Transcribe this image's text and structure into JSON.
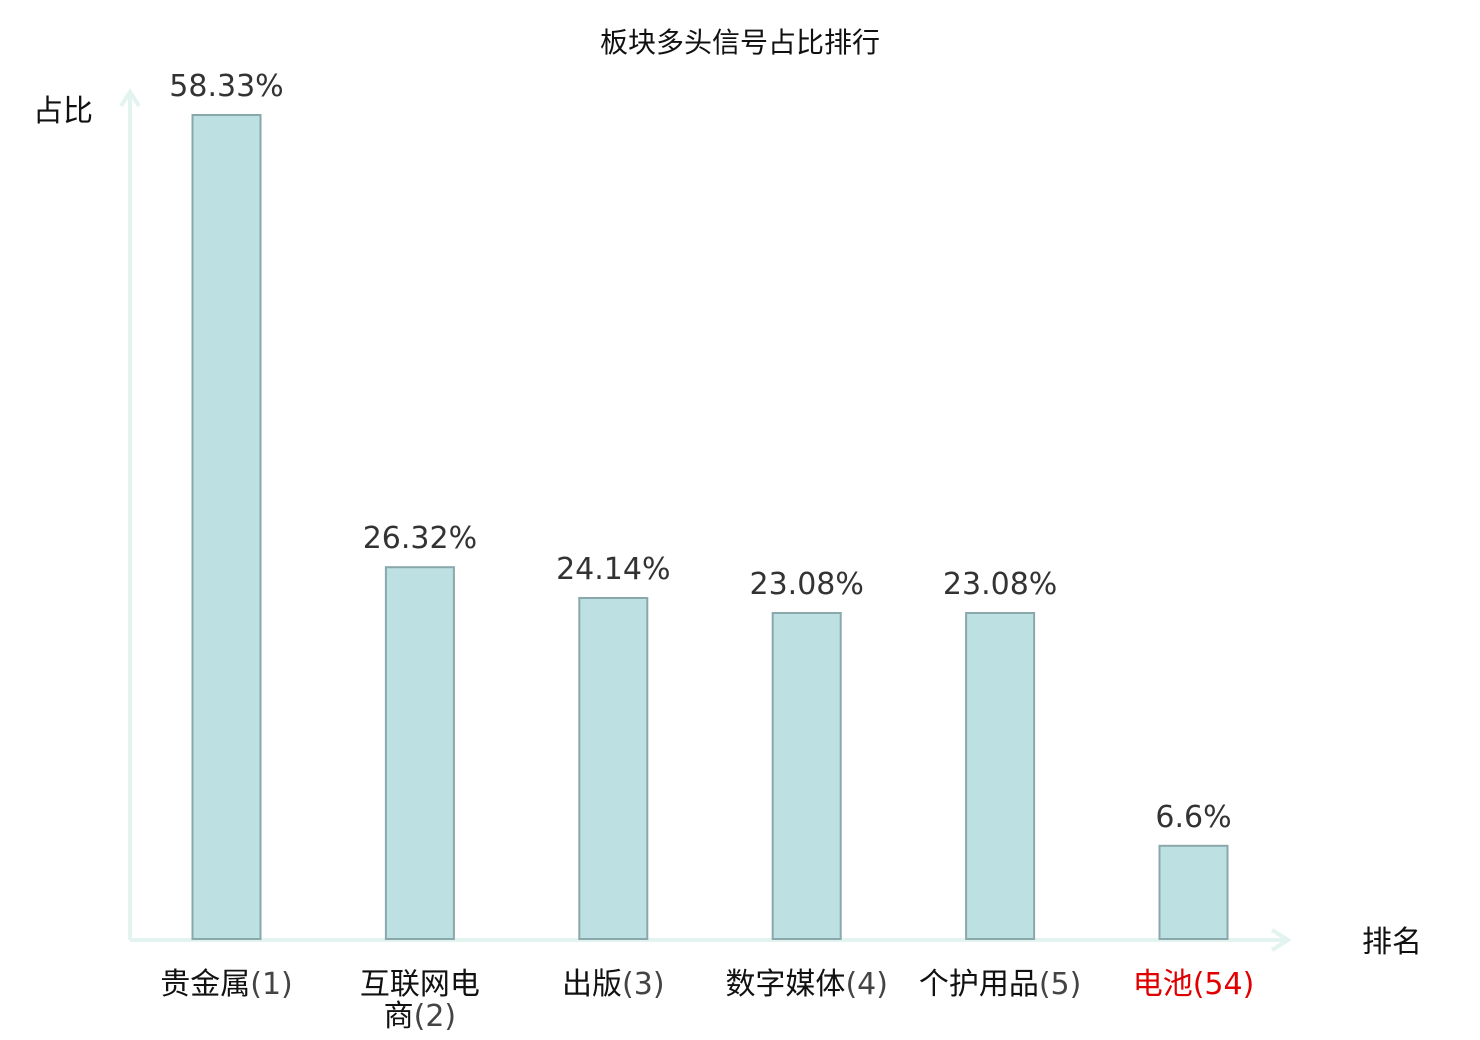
{
  "chart_data": {
    "type": "bar",
    "title": "板块多头信号占比排行",
    "ylabel": "占比",
    "xlabel": "排名",
    "categories": [
      {
        "name": "贵金属",
        "rank": "(1)",
        "lines": [
          "贵金属(1)"
        ]
      },
      {
        "name": "互联网电商",
        "rank": "(2)",
        "lines": [
          "互联网电",
          "商(2)"
        ]
      },
      {
        "name": "出版",
        "rank": "(3)",
        "lines": [
          "出版(3)"
        ]
      },
      {
        "name": "数字媒体",
        "rank": "(4)",
        "lines": [
          "数字媒体(4)"
        ]
      },
      {
        "name": "个护用品",
        "rank": "(5)",
        "lines": [
          "个护用品(5)"
        ]
      },
      {
        "name": "电池",
        "rank": "(54)",
        "lines": [
          "电池(54)"
        ],
        "highlight": true
      }
    ],
    "values": [
      58.33,
      26.32,
      24.14,
      23.08,
      23.08,
      6.6
    ],
    "value_labels": [
      "58.33%",
      "26.32%",
      "24.14%",
      "23.08%",
      "23.08%",
      "6.6%"
    ],
    "ylim": [
      0,
      58.33
    ],
    "grid": false,
    "legend": "none",
    "colors": {
      "bar_fill": "#bde0e3",
      "bar_stroke": "#8aa8ab",
      "axis": "#e2f3f0",
      "highlight_label": "#e00000"
    }
  }
}
